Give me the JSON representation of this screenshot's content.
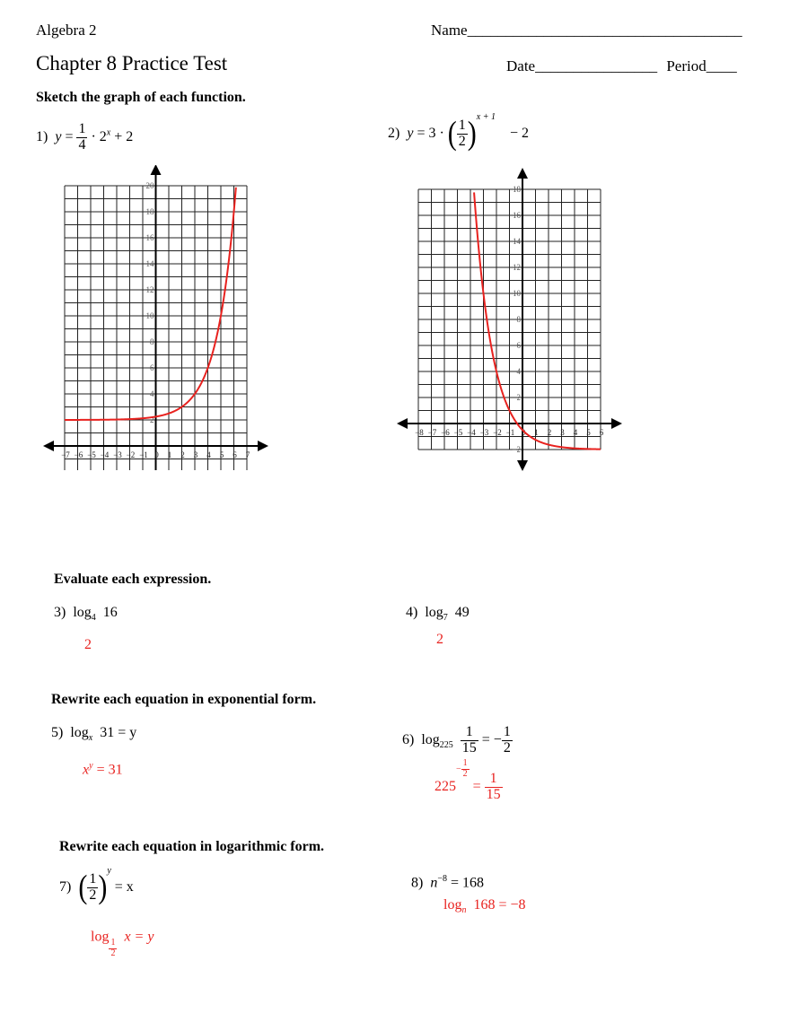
{
  "header": {
    "course": "Algebra 2",
    "name_label": "Name",
    "name_line": "____________________________________",
    "title": "Chapter 8 Practice Test",
    "date_label": "Date",
    "date_line": "________________",
    "period_label": "Period",
    "period_line": "____"
  },
  "sections": {
    "sketch": "Sketch the graph of each function.",
    "evaluate": "Evaluate each expression.",
    "exponential": "Rewrite each equation in exponential form.",
    "logarithmic": "Rewrite each equation in logarithmic form."
  },
  "colors": {
    "answer": "#e8221f",
    "grid": "#222222",
    "curve": "#e8221f"
  },
  "q1": {
    "num": "1)",
    "y": "y",
    "eq": "=",
    "frac_num": "1",
    "frac_den": "4",
    "dot": "·",
    "base": "2",
    "exp": "x",
    "tail": "+ 2",
    "graph": {
      "x_ticks": [
        "−7",
        "−6",
        "−5",
        "−4",
        "−3",
        "−2",
        "−1",
        "0",
        "1",
        "2",
        "3",
        "4",
        "5",
        "6",
        "7"
      ],
      "y_ticks": [
        "2",
        "4",
        "6",
        "8",
        "10",
        "12",
        "14",
        "16",
        "18",
        "20"
      ]
    }
  },
  "q2": {
    "num": "2)",
    "y": "y",
    "eq": "= 3 ·",
    "frac_num": "1",
    "frac_den": "2",
    "exp": "x + 1",
    "tail": "− 2",
    "graph": {
      "x_ticks": [
        "−8",
        "−7",
        "−6",
        "−5",
        "−4",
        "−3",
        "−2",
        "−1",
        "0",
        "1",
        "2",
        "3",
        "4",
        "5",
        "6"
      ],
      "y_ticks": [
        "−2",
        "2",
        "4",
        "6",
        "8",
        "10",
        "12",
        "14",
        "16",
        "18"
      ]
    }
  },
  "q3": {
    "num": "3)",
    "log": "log",
    "base": "4",
    "arg": "16",
    "answer": "2"
  },
  "q4": {
    "num": "4)",
    "log": "log",
    "base": "7",
    "arg": "49",
    "answer": "2"
  },
  "q5": {
    "num": "5)",
    "log": "log",
    "base": "x",
    "rest": "31 = y",
    "ans_base": "x",
    "ans_exp": "y",
    "ans_rest": "= 31"
  },
  "q6": {
    "num": "6)",
    "log": "log",
    "base": "225",
    "frac_num": "1",
    "frac_den": "15",
    "eq": "= −",
    "rhs_num": "1",
    "rhs_den": "2",
    "ans_base": "225",
    "ans_exp_sign": "−",
    "ans_exp_num": "1",
    "ans_exp_den": "2",
    "ans_eq": "=",
    "ans_num": "1",
    "ans_den": "15"
  },
  "q7": {
    "num": "7)",
    "frac_num": "1",
    "frac_den": "2",
    "exp": "y",
    "rest": "= x",
    "ans_log": "log",
    "ans_base_num": "1",
    "ans_base_den": "2",
    "ans_rest": "x = y"
  },
  "q8": {
    "num": "8)",
    "base": "n",
    "exp": "−8",
    "rest": "= 168",
    "ans_log": "log",
    "ans_base": "n",
    "ans_rest": "168 = −8"
  }
}
